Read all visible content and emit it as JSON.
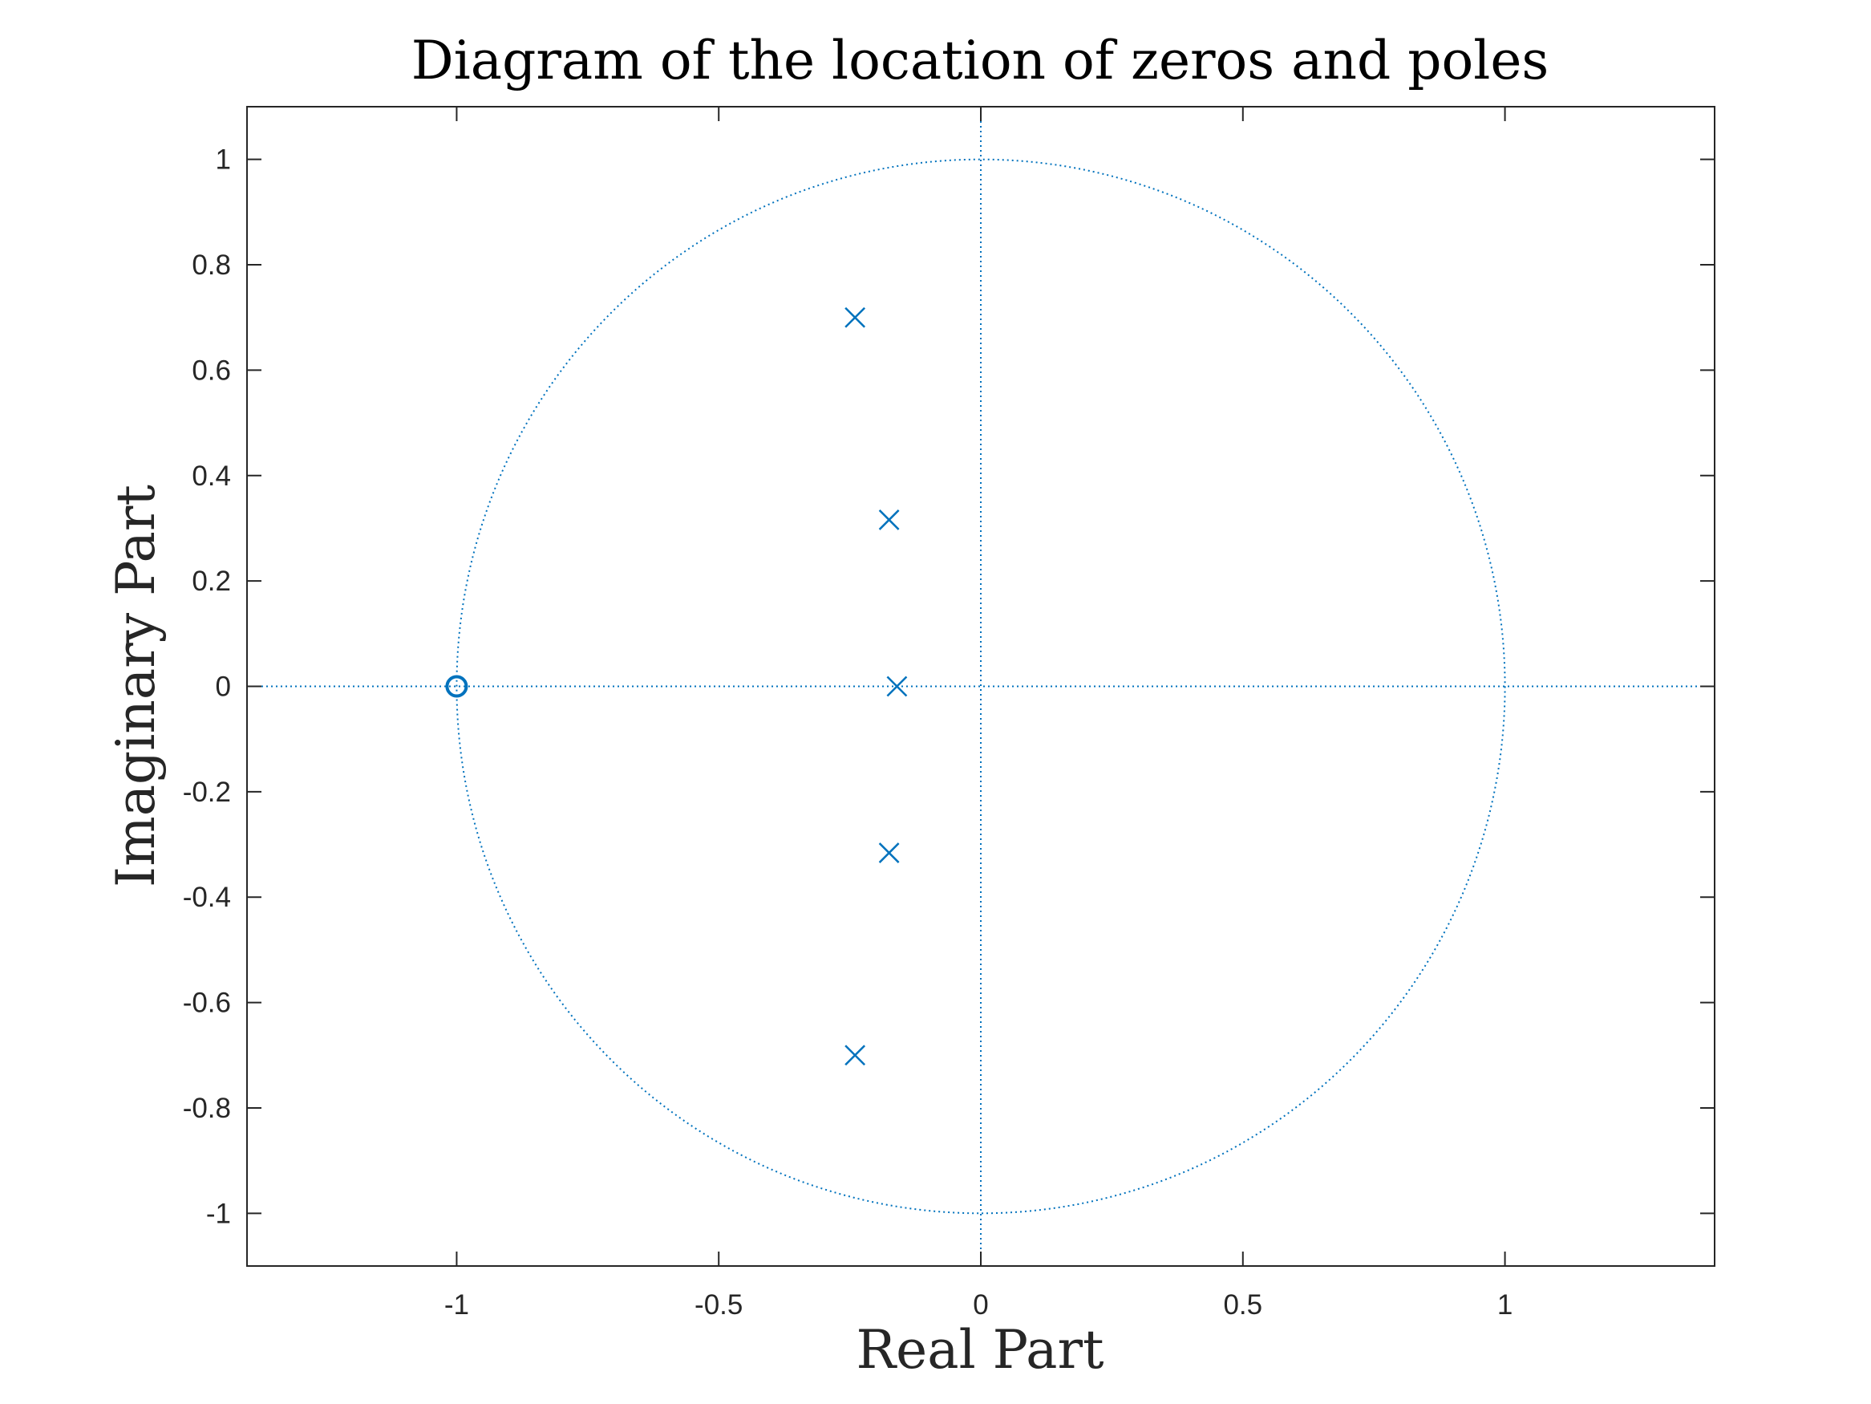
{
  "chart_data": {
    "type": "scatter",
    "title": "Diagram of the location of zeros and poles",
    "xlabel": "Real Part",
    "ylabel": "Imaginary Part",
    "xlim": [
      -1.4,
      1.4
    ],
    "ylim": [
      -1.1,
      1.1
    ],
    "xticks": [
      -1,
      -0.5,
      0,
      0.5,
      1
    ],
    "xtick_labels": [
      "-1",
      "-0.5",
      "0",
      "0.5",
      "1"
    ],
    "yticks": [
      1,
      0.8,
      0.6,
      0.4,
      0.2,
      0,
      -0.2,
      -0.4,
      -0.6,
      -0.8,
      -1
    ],
    "ytick_labels": [
      "1",
      "0.8",
      "0.6",
      "0.4",
      "0.2",
      "0",
      "-0.2",
      "-0.4",
      "-0.6",
      "-0.8",
      "-1"
    ],
    "grid": false,
    "unit_circle": true,
    "series": [
      {
        "marker": "o",
        "points": [
          {
            "x": -1.0,
            "y": 0.0
          }
        ]
      },
      {
        "marker": "x",
        "points": [
          {
            "x": -0.24,
            "y": 0.7
          },
          {
            "x": -0.175,
            "y": 0.316
          },
          {
            "x": -0.16,
            "y": 0.0
          },
          {
            "x": -0.175,
            "y": -0.316
          },
          {
            "x": -0.24,
            "y": -0.7
          }
        ]
      }
    ],
    "colors": {
      "marker": "#0072BD",
      "axes": "#262626"
    }
  }
}
